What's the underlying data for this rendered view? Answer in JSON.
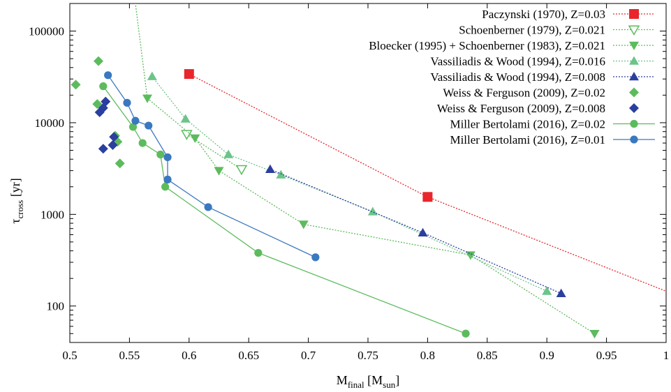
{
  "chart_data": {
    "type": "scatter",
    "xlabel": {
      "main": "M",
      "sub": "final",
      "rest": " [M",
      "sub2": "sun",
      "end": "]"
    },
    "ylabel": {
      "main": "τ",
      "sub": "cross",
      "rest": " [yr]"
    },
    "xlim": [
      0.5,
      1.0
    ],
    "ylim": [
      40,
      200000
    ],
    "yscale": "log",
    "xticks": [
      0.5,
      0.55,
      0.6,
      0.65,
      0.7,
      0.75,
      0.8,
      0.85,
      0.9,
      0.95,
      1.0
    ],
    "xtick_labels": [
      "0.5",
      "0.55",
      "0.6",
      "0.65",
      "0.7",
      "0.75",
      "0.8",
      "0.85",
      "0.9",
      "0.95",
      "1"
    ],
    "yticks": [
      100,
      1000,
      10000,
      100000
    ],
    "ytick_labels": [
      "100",
      "1000",
      "10000",
      "100000"
    ],
    "grid": false,
    "legend_position": "top-right",
    "series": [
      {
        "name": "Paczynski (1970), Z=0.03",
        "color": "#e8262b",
        "marker": "square",
        "line": "dotted",
        "points": [
          [
            0.6,
            34000
          ],
          [
            0.8,
            1550
          ]
        ],
        "line_points": [
          [
            0.6,
            34000
          ],
          [
            0.8,
            1550
          ],
          [
            1.0,
            145
          ]
        ]
      },
      {
        "name": "Schoenberner (1979), Z=0.021",
        "color": "#5dbb5d",
        "marker": "triangle-down-open",
        "line": "dotted",
        "points": [
          [
            0.598,
            7500
          ],
          [
            0.644,
            3100
          ]
        ]
      },
      {
        "name": "Bloecker (1995) + Schoenberner (1983), Z=0.021",
        "color": "#5dbb5d",
        "marker": "triangle-down",
        "line": "dotted",
        "points": [
          [
            0.565,
            18500
          ],
          [
            0.605,
            6800
          ],
          [
            0.625,
            3000
          ],
          [
            0.696,
            780
          ],
          [
            0.836,
            360
          ],
          [
            0.94,
            50
          ]
        ],
        "extra_line": [
          [
            0.565,
            18500
          ],
          [
            0.555,
            200000
          ]
        ]
      },
      {
        "name": "Vassiliadis & Wood (1994), Z=0.016",
        "color": "#6cc48a",
        "marker": "triangle-up",
        "line": "dotted",
        "points": [
          [
            0.569,
            32000
          ],
          [
            0.597,
            11000
          ],
          [
            0.633,
            4500
          ],
          [
            0.677,
            2700
          ],
          [
            0.754,
            1070
          ],
          [
            0.9,
            145
          ]
        ]
      },
      {
        "name": "Vassiliadis & Wood (1994), Z=0.008",
        "color": "#2a3f9e",
        "marker": "triangle-up",
        "line": "dotted",
        "points": [
          [
            0.668,
            3100
          ],
          [
            0.796,
            630
          ],
          [
            0.912,
            137
          ]
        ]
      },
      {
        "name": "Weiss & Ferguson (2009), Z=0.02",
        "color": "#5dbb5d",
        "marker": "diamond",
        "line": "none",
        "points": [
          [
            0.505,
            26000
          ],
          [
            0.524,
            47000
          ],
          [
            0.523,
            16000
          ],
          [
            0.538,
            7200
          ],
          [
            0.54,
            6200
          ],
          [
            0.542,
            3600
          ]
        ]
      },
      {
        "name": "Weiss & Ferguson (2009), Z=0.008",
        "color": "#2a3f9e",
        "marker": "diamond",
        "line": "none",
        "points": [
          [
            0.53,
            17000
          ],
          [
            0.528,
            14500
          ],
          [
            0.525,
            13000
          ],
          [
            0.537,
            7000
          ],
          [
            0.536,
            5700
          ],
          [
            0.528,
            5200
          ]
        ]
      },
      {
        "name": "Miller Bertolami (2016), Z=0.02",
        "color": "#5dbb5d",
        "marker": "circle",
        "line": "solid",
        "points": [
          [
            0.528,
            25000
          ],
          [
            0.553,
            9000
          ],
          [
            0.561,
            6000
          ],
          [
            0.576,
            4500
          ],
          [
            0.58,
            2000
          ],
          [
            0.658,
            380
          ],
          [
            0.832,
            50
          ]
        ]
      },
      {
        "name": "Miller Bertolami (2016), Z=0.01",
        "color": "#3a78c0",
        "marker": "circle",
        "line": "solid",
        "points": [
          [
            0.532,
            33000
          ],
          [
            0.548,
            16500
          ],
          [
            0.555,
            10500
          ],
          [
            0.566,
            9300
          ],
          [
            0.582,
            4200
          ],
          [
            0.582,
            2400
          ],
          [
            0.616,
            1200
          ],
          [
            0.706,
            340
          ]
        ]
      }
    ]
  }
}
